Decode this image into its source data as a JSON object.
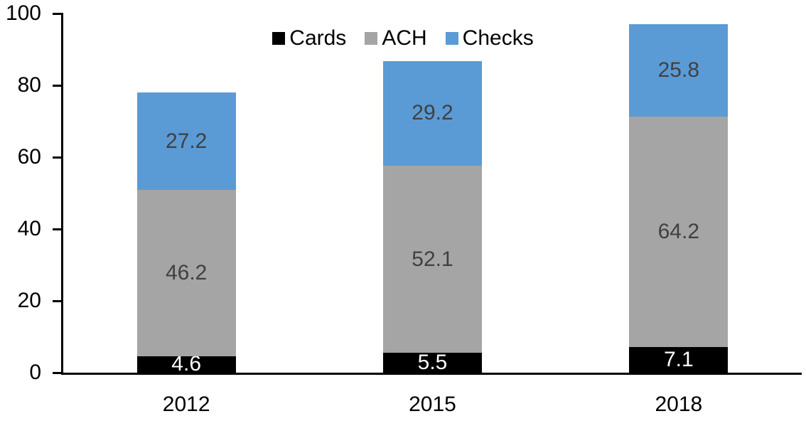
{
  "chart_data": {
    "type": "bar",
    "stacked": true,
    "title": "",
    "xlabel": "",
    "ylabel": "",
    "categories": [
      "2012",
      "2015",
      "2018"
    ],
    "series": [
      {
        "name": "Cards",
        "color": "#000000",
        "label_color": "#ffffff",
        "values": [
          4.6,
          5.5,
          7.1
        ]
      },
      {
        "name": "ACH",
        "color": "#a5a5a5",
        "label_color": "#404040",
        "values": [
          46.2,
          52.1,
          64.2
        ]
      },
      {
        "name": "Checks",
        "color": "#5b9bd5",
        "label_color": "#404040",
        "values": [
          27.2,
          29.2,
          25.8
        ]
      }
    ],
    "ylim": [
      0,
      100
    ],
    "yticks": [
      0,
      20,
      40,
      60,
      80,
      100
    ],
    "legend_position": "top-center",
    "grid": false,
    "axis_color": "#000000",
    "tick_label_color": "#000000"
  }
}
